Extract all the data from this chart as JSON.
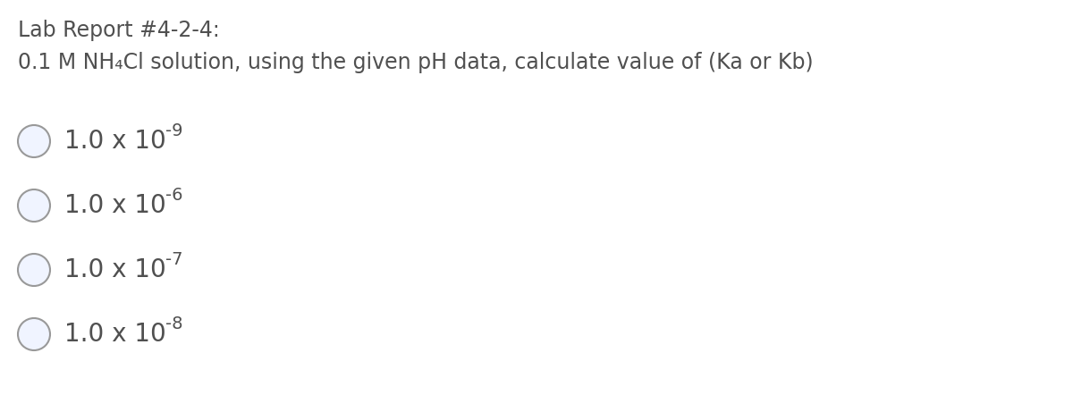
{
  "background_color": "#ffffff",
  "title_line1": "Lab Report #4-2-4:",
  "title_line2": "0.1 M NH₄Cl solution, using the given pH data, calculate value of (Ka or Kb)",
  "option_exponents": [
    "-9",
    "-6",
    "-7",
    "-8"
  ],
  "text_color": "#505050",
  "circle_edge_color": "#999999",
  "circle_face_color": "#f0f4ff",
  "title_fontsize": 17,
  "option_fontsize": 20,
  "exp_fontsize": 14,
  "fig_width": 12.0,
  "fig_height": 4.42,
  "dpi": 100
}
